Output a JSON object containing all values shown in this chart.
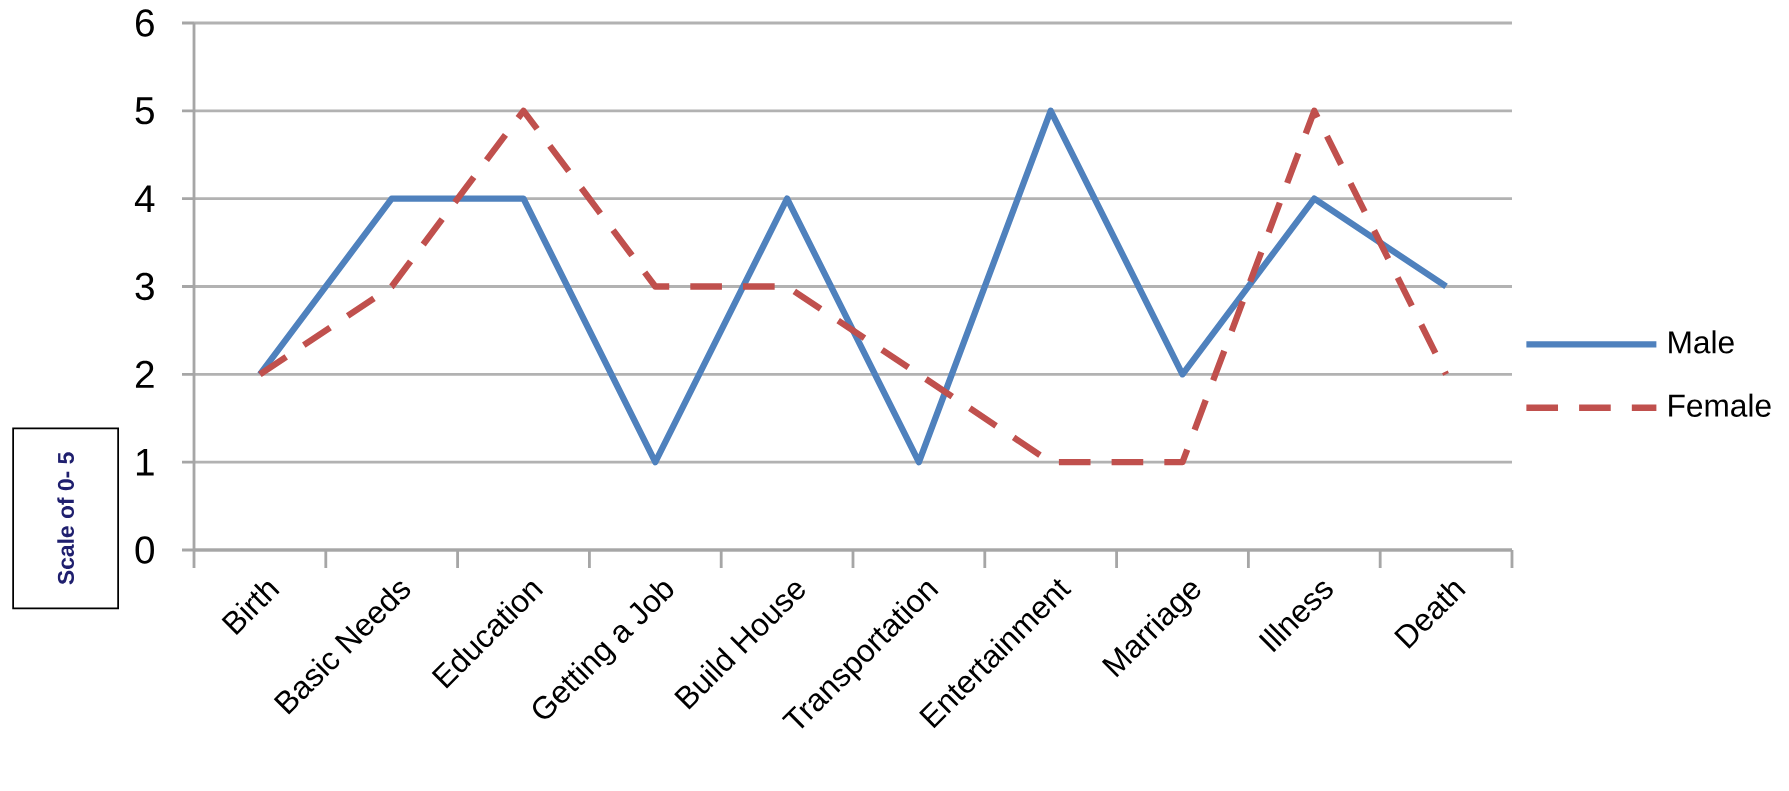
{
  "chart_data": {
    "type": "line",
    "ylabel": "Scale of 0- 5",
    "categories": [
      "Birth",
      "Basic Needs",
      "Education",
      "Getting a Job",
      "Build House",
      "Transportation",
      "Entertainment",
      "Marriage",
      "Illness",
      "Death"
    ],
    "series": [
      {
        "name": "Male",
        "color": "#4f81bd",
        "line_style": "solid",
        "values": [
          2,
          4,
          4,
          1,
          4,
          1,
          5,
          2,
          4,
          3
        ]
      },
      {
        "name": "Female",
        "color": "#c0504d",
        "line_style": "dashed",
        "values": [
          2,
          3,
          5,
          3,
          3,
          2,
          1,
          1,
          5,
          2
        ]
      }
    ],
    "ylim": [
      0,
      6
    ],
    "yticks": [
      0,
      1,
      2,
      3,
      4,
      5,
      6
    ],
    "grid": "y",
    "legend": "right",
    "marker": "none"
  }
}
